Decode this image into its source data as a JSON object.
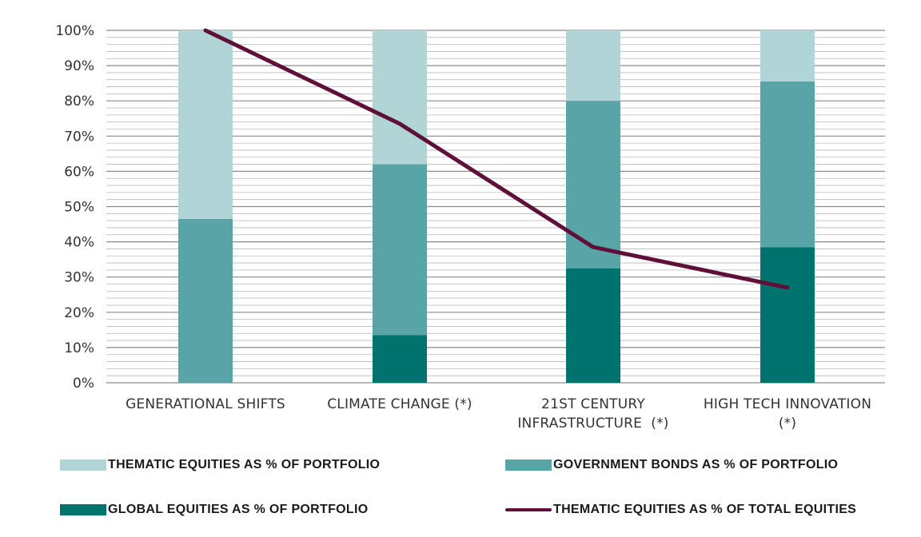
{
  "chart_data": {
    "type": "bar",
    "stacked": true,
    "categories": [
      [
        "GENERATIONAL SHIFTS"
      ],
      [
        "CLIMATE CHANGE (*)"
      ],
      [
        "21ST CENTURY",
        "INFRASTRUCTURE  (*)"
      ],
      [
        "HIGH TECH INNOVATION",
        "(*)"
      ]
    ],
    "ylim": [
      0,
      100
    ],
    "yticks": [
      0,
      10,
      20,
      30,
      40,
      50,
      60,
      70,
      80,
      90,
      100
    ],
    "ytick_labels": [
      "0%",
      "10%",
      "20%",
      "30%",
      "40%",
      "50%",
      "60%",
      "70%",
      "80%",
      "90%",
      "100%"
    ],
    "minor_grid_step": 2,
    "series": [
      {
        "name": "GLOBAL EQUITIES AS % OF PORTFOLIO",
        "kind": "bar",
        "color": "#00736F",
        "values": [
          0,
          13.5,
          32.5,
          38.5
        ]
      },
      {
        "name": "GOVERNMENT BONDS AS % OF PORTFOLIO",
        "kind": "bar",
        "color": "#58A4A6",
        "values": [
          46.5,
          48.5,
          47.5,
          47
        ]
      },
      {
        "name": "THEMATIC EQUITIES AS % OF PORTFOLIO",
        "kind": "bar",
        "color": "#B1D5D6",
        "values": [
          53.5,
          38,
          20,
          14.5
        ]
      },
      {
        "name": "THEMATIC EQUITIES AS % OF TOTAL EQUITIES",
        "kind": "line",
        "color": "#5E1038",
        "values": [
          100,
          73.5,
          38.5,
          27
        ]
      }
    ],
    "legend_position": "bottom"
  },
  "legend": [
    {
      "label": "THEMATIC EQUITIES AS % OF PORTFOLIO",
      "color": "#B1D5D6",
      "kind": "box"
    },
    {
      "label": "GOVERNMENT BONDS AS % OF PORTFOLIO",
      "color": "#58A4A6",
      "kind": "box"
    },
    {
      "label": "GLOBAL EQUITIES AS % OF PORTFOLIO",
      "color": "#00736F",
      "kind": "box"
    },
    {
      "label": "THEMATIC EQUITIES AS % OF TOTAL EQUITIES",
      "color": "#5E1038",
      "kind": "line"
    }
  ]
}
